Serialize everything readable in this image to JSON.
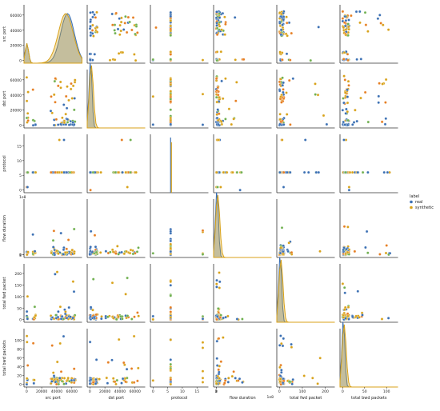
{
  "chart_data": {
    "type": "scatter",
    "variables": [
      "src port",
      "dst port",
      "protocol",
      "flow duration",
      "total fwd packet",
      "total bwd packets"
    ],
    "ranges": {
      "src port": [
        0,
        70000
      ],
      "dst port": [
        0,
        70000
      ],
      "protocol": [
        0,
        18
      ],
      "flow duration": [
        0,
        220000000.0
      ],
      "total fwd packet": [
        0,
        230
      ],
      "total bwd packets": [
        0,
        120
      ]
    },
    "ticks": {
      "src port": [
        0,
        20000,
        40000,
        60000
      ],
      "dst port": [
        0,
        20000,
        40000,
        60000
      ],
      "protocol": [
        0,
        5,
        10,
        15
      ],
      "flow duration": [
        0,
        1,
        2
      ],
      "total fwd packet": [
        0,
        50,
        100,
        150,
        200
      ],
      "total bwd packets": [
        0,
        20,
        40,
        60,
        80,
        100
      ]
    },
    "bottom_ticks": {
      "src port": [
        0,
        20000,
        40000,
        60000
      ],
      "dst port": [
        0,
        20000,
        40000,
        60000
      ],
      "protocol": [
        0,
        5,
        10,
        15
      ],
      "flow duration": [
        0,
        1,
        2
      ],
      "total fwd packet": [
        0,
        100,
        200
      ],
      "total bwd packets": [
        0,
        50,
        100
      ]
    },
    "tick_labels": {
      "flow duration": [
        "0",
        "1",
        "2"
      ]
    },
    "scale_note": "1e8",
    "legend": {
      "title": "label",
      "placement": "right",
      "series": [
        {
          "name": "real",
          "color": "#3a6fb3"
        },
        {
          "name": "synthetic",
          "color": "#d8a21a"
        }
      ]
    },
    "series_colors": {
      "real": "#3a6fb3",
      "synthetic": "#d8a21a",
      "synthetic_alt": "#e67e22"
    },
    "diagonal": "kde",
    "off_diagonal": "scatter"
  }
}
